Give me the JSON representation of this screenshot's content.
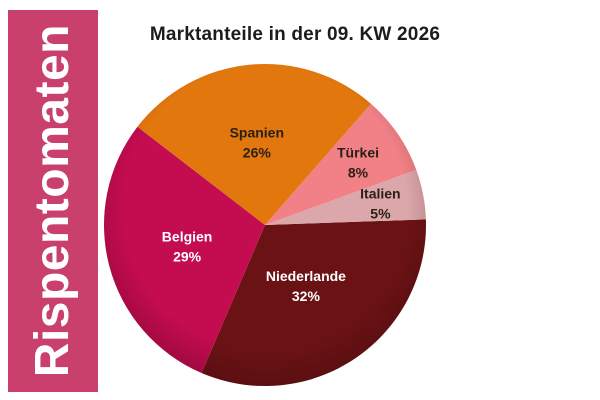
{
  "banner": {
    "label": "Rispentomaten",
    "bg_color": "#C8406B",
    "text_color": "#FFFFFF"
  },
  "title": "Marktanteile in der 09. KW 2026",
  "chart_data": {
    "type": "pie",
    "title": "Marktanteile in der 09. KW 2026",
    "unit": "%",
    "legend": "none",
    "labels_on_slices": true,
    "start_angle_deg": -2,
    "direction": "clockwise-from-east",
    "slices": [
      {
        "label": "Niederlande",
        "value": 32,
        "value_label": "32%",
        "color": "#6B1314",
        "label_color": "#FFFFFF",
        "label_r": 0.45
      },
      {
        "label": "Belgien",
        "value": 29,
        "value_label": "29%",
        "color": "#C40C50",
        "label_color": "#FFFFFF",
        "label_r": 0.5
      },
      {
        "label": "Spanien",
        "value": 26,
        "value_label": "26%",
        "color": "#E2770E",
        "label_color": "#2B2015",
        "label_r": 0.52
      },
      {
        "label": "Türkei",
        "value": 8,
        "value_label": "8%",
        "color": "#F18186",
        "label_color": "#2B2015",
        "label_r": 0.7
      },
      {
        "label": "Italien",
        "value": 5,
        "value_label": "5%",
        "color": "#DCA7AA",
        "label_color": "#2B2015",
        "label_r": 0.73
      }
    ]
  }
}
